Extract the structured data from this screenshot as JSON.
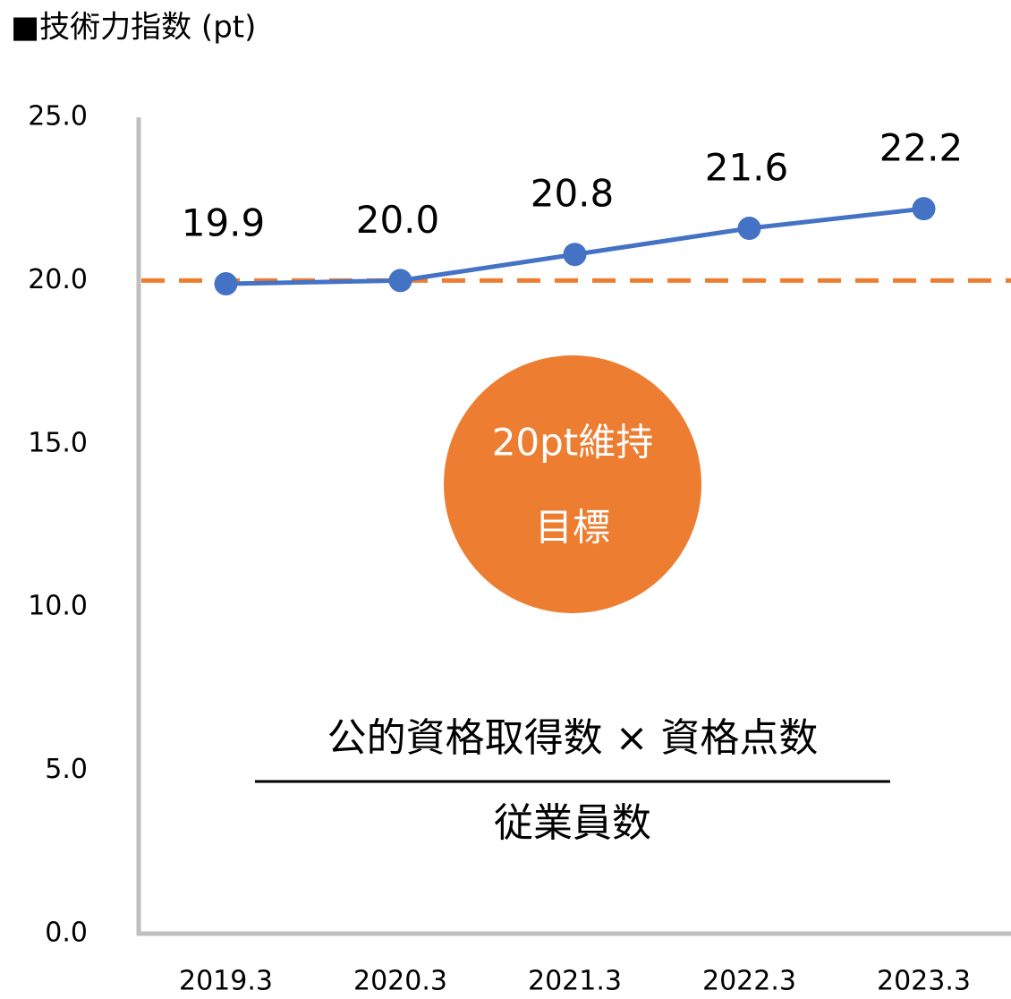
{
  "chart_data": {
    "type": "line",
    "title": "■技術力指数 (pt)",
    "categories": [
      "2019.3",
      "2020.3",
      "2021.3",
      "2022.3",
      "2023.3"
    ],
    "series": [
      {
        "name": "技術力指数",
        "color": "#4472c4",
        "values": [
          19.9,
          20.0,
          20.8,
          21.6,
          22.2
        ],
        "value_labels": [
          "19.9",
          "20.0",
          "20.8",
          "21.6",
          "22.2"
        ]
      }
    ],
    "ylim": [
      0,
      25
    ],
    "yticks": [
      {
        "value": 0,
        "label": "0.0"
      },
      {
        "value": 5,
        "label": "5.0"
      },
      {
        "value": 10,
        "label": "10.0"
      },
      {
        "value": 15,
        "label": "15.0"
      },
      {
        "value": 20,
        "label": "20.0"
      },
      {
        "value": 25,
        "label": "25.0"
      }
    ],
    "grid": false,
    "legend": false,
    "target_line": {
      "value": 20,
      "color": "#ed7d31"
    },
    "annotations": {
      "badge": [
        "20pt維持",
        "目標"
      ],
      "badge_color": "#ed7d31",
      "formula_numerator": "公的資格取得数 × 資格点数",
      "formula_denominator": "従業員数"
    }
  }
}
